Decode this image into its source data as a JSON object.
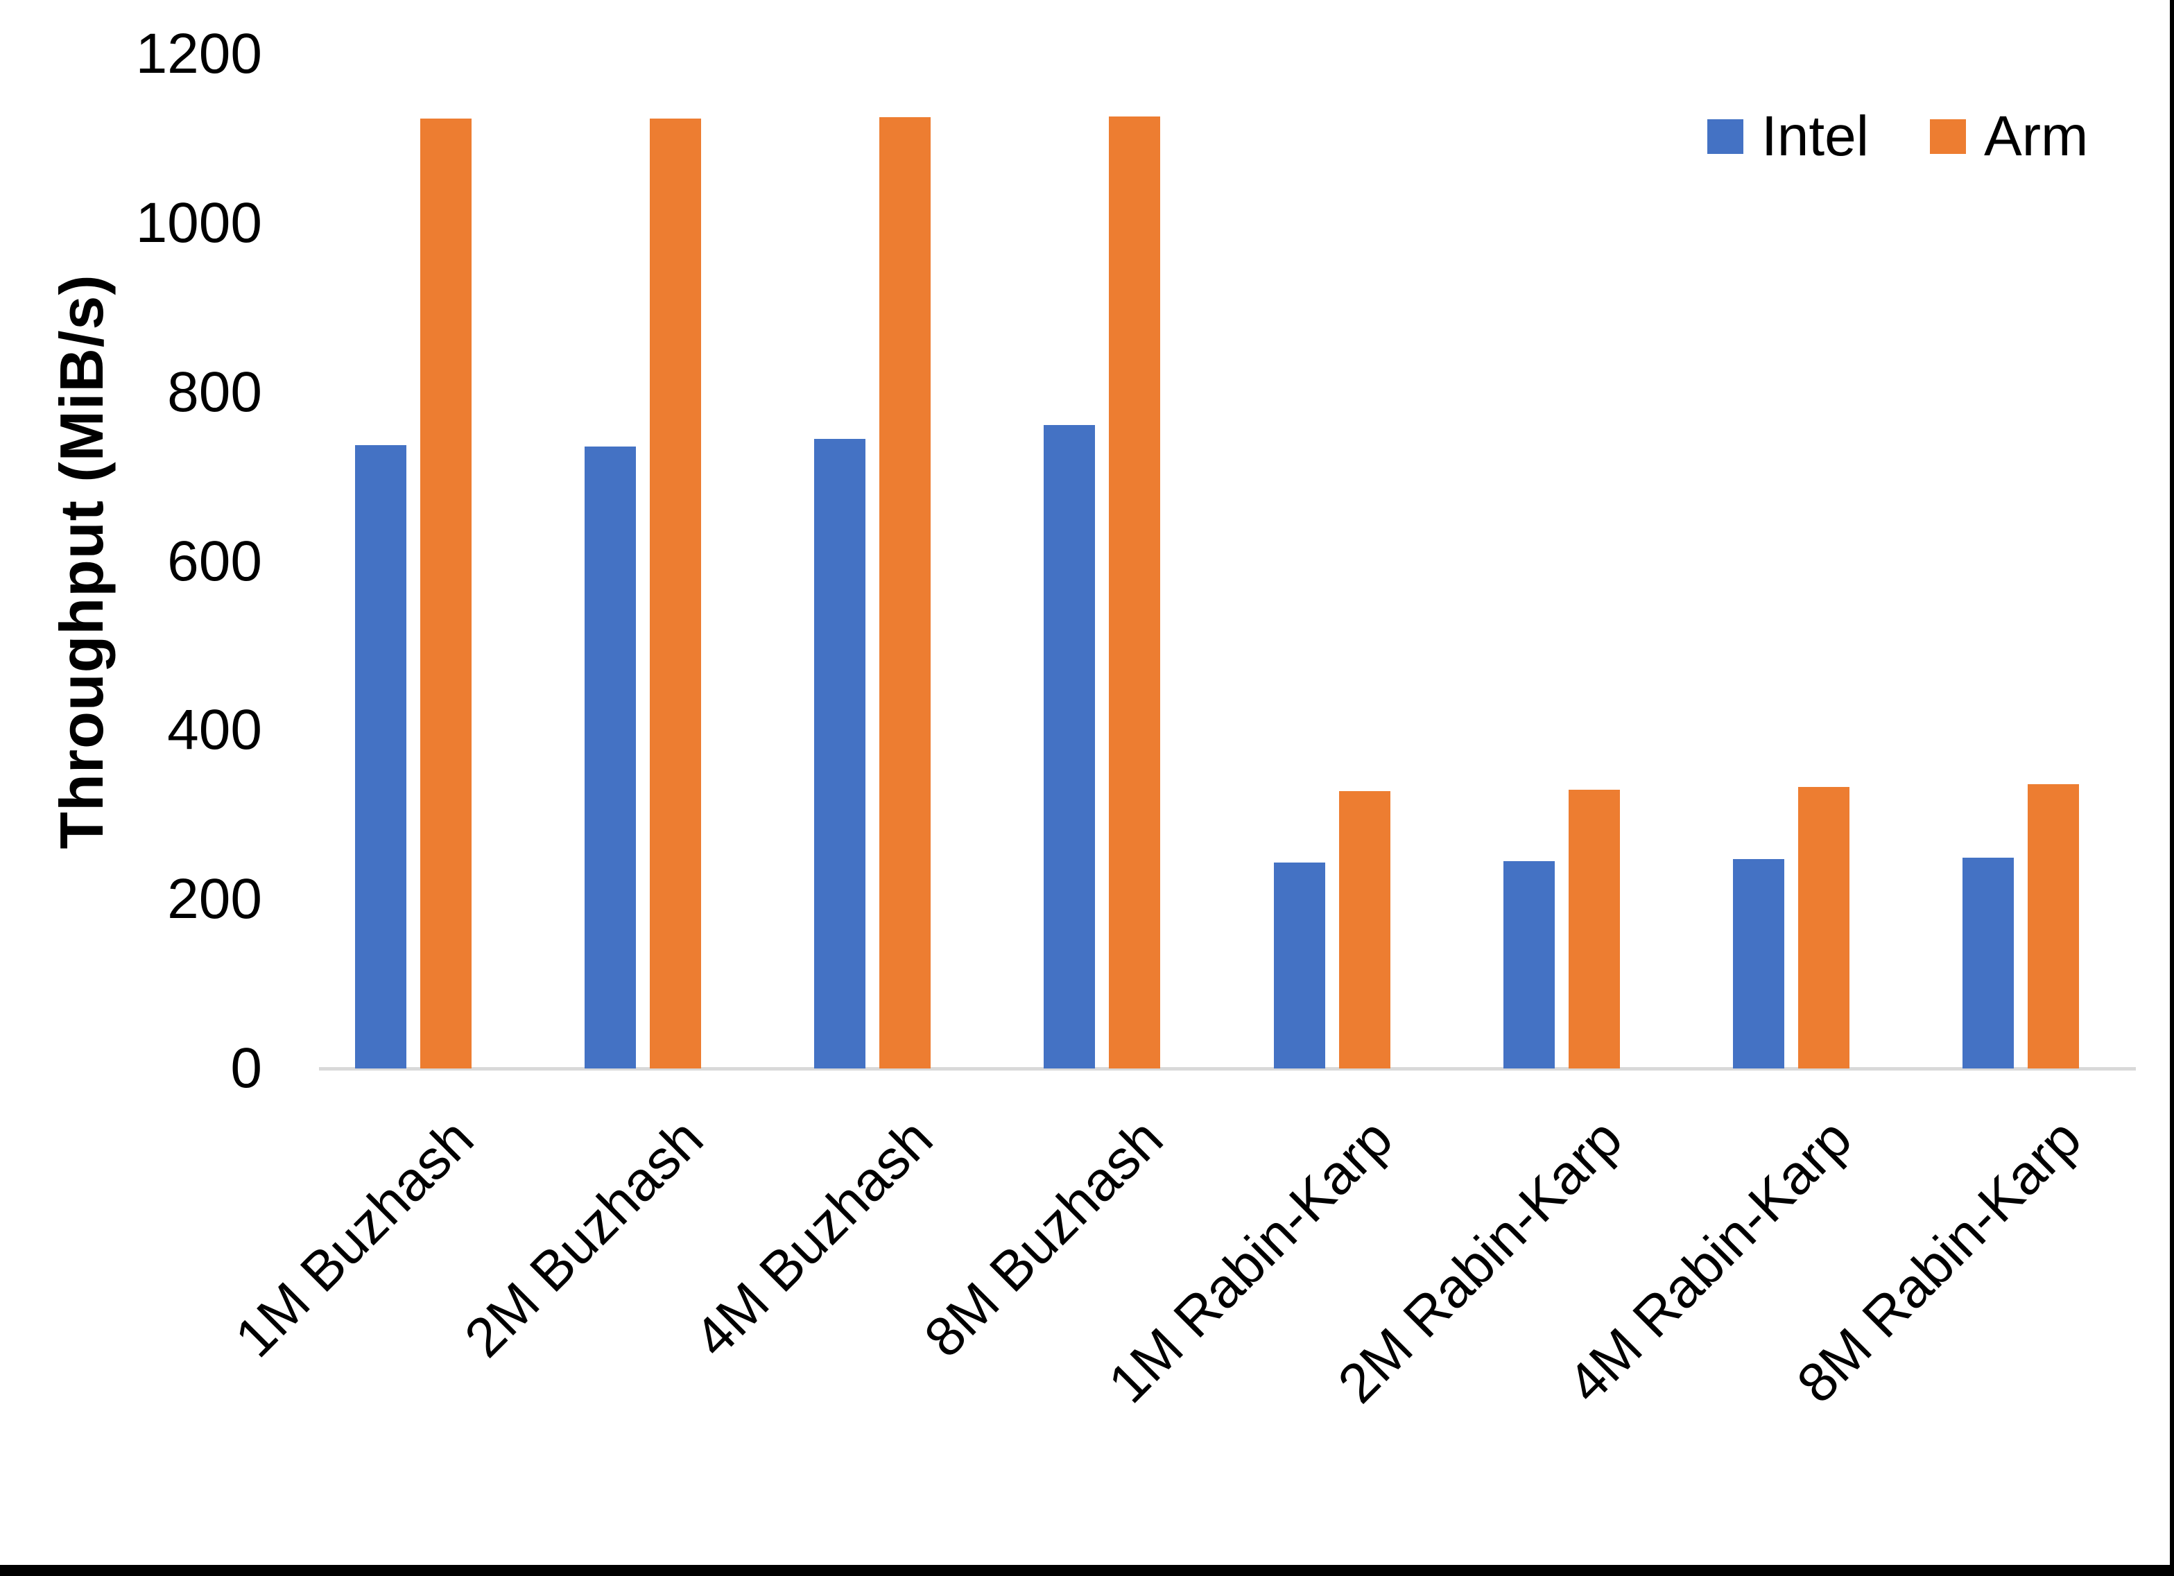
{
  "chart_data": {
    "type": "bar",
    "title": "",
    "xlabel": "",
    "ylabel": "Throughput (MiB/s)",
    "categories": [
      "1M Buzhash",
      "2M Buzhash",
      "4M Buzhash",
      "8M Buzhash",
      "1M Rabin-Karp",
      "2M Rabin-Karp",
      "4M Rabin-Karp",
      "8M Rabin-Karp"
    ],
    "series": [
      {
        "name": "Intel",
        "color": "#4472C4",
        "values": [
          737,
          736,
          745,
          761,
          244,
          245,
          248,
          249
        ]
      },
      {
        "name": "Arm",
        "color": "#ED7D31",
        "values": [
          1124,
          1124,
          1125,
          1126,
          328,
          330,
          333,
          336
        ]
      }
    ],
    "ylim": [
      0,
      1200
    ],
    "yticks": [
      0,
      200,
      400,
      600,
      800,
      1000,
      1200
    ],
    "grid": false,
    "legend_position": "top-right",
    "axis_line_color": "#D9D9D9",
    "text_color": "#000000",
    "background_color": "#FFFFFF"
  },
  "window": {
    "right_border_color": "#000000",
    "bottom_border_color": "#000000"
  }
}
